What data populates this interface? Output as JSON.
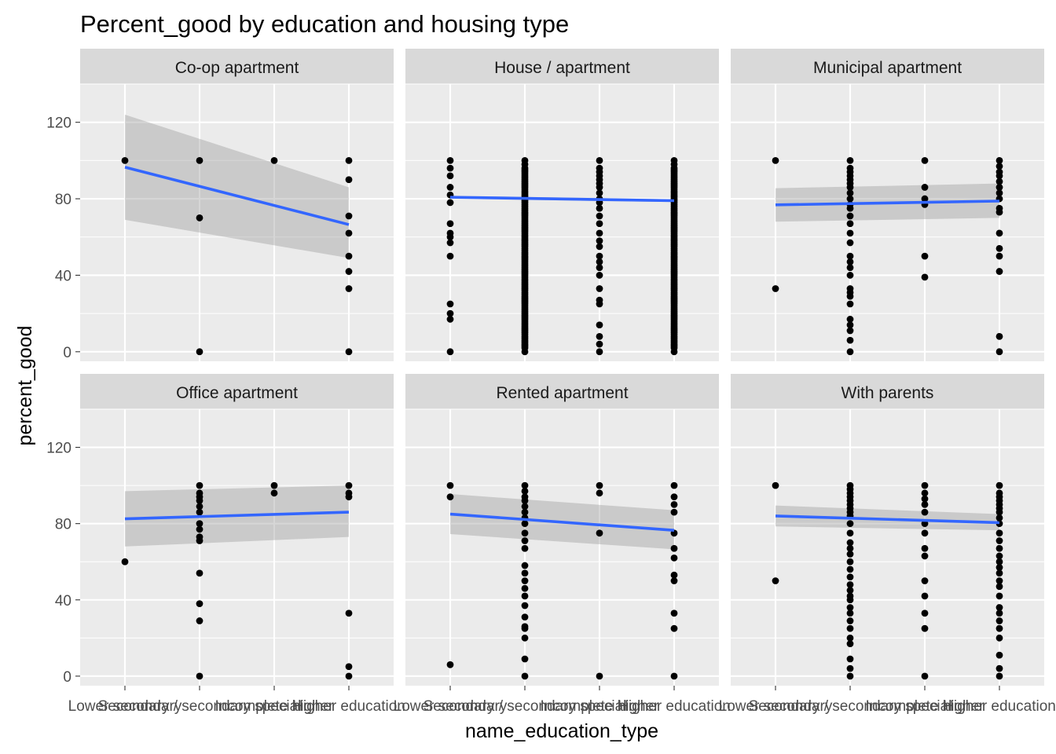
{
  "chart_data": {
    "type": "scatter",
    "title": "Percent_good by education and housing type",
    "xlabel": "name_education_type",
    "ylabel": "percent_good",
    "x_categories": [
      "Lower secondary",
      "Secondary / secondary special",
      "Incomplete higher",
      "Higher education"
    ],
    "ylim": [
      -5,
      140
    ],
    "y_ticks": [
      0,
      40,
      80,
      120
    ],
    "grid": true,
    "facets": [
      {
        "label": "Co-op apartment",
        "points": {
          "Lower secondary": [
            100
          ],
          "Secondary / secondary special": [
            100,
            70,
            0
          ],
          "Incomplete higher": [
            100
          ],
          "Higher education": [
            100,
            90,
            71,
            62,
            50,
            42,
            33,
            0
          ]
        },
        "fit": [
          96.5,
          66.5
        ],
        "ci_lower": [
          69,
          49
        ],
        "ci_upper": [
          124,
          86
        ]
      },
      {
        "label": "House / apartment",
        "points": {
          "Lower secondary": [
            100,
            96,
            92,
            86,
            82,
            78,
            67,
            62,
            60,
            57,
            50,
            25,
            20,
            17,
            0
          ],
          "Secondary / secondary special": [
            100,
            98,
            96,
            95,
            94,
            93,
            92,
            91,
            90,
            89,
            88,
            87,
            86,
            85,
            84,
            83,
            82,
            81,
            80,
            79,
            78,
            77,
            76,
            75,
            74,
            73,
            72,
            71,
            70,
            69,
            68,
            67,
            66,
            65,
            64,
            63,
            62,
            61,
            60,
            59,
            58,
            57,
            56,
            55,
            54,
            53,
            52,
            51,
            50,
            49,
            48,
            47,
            46,
            45,
            44,
            43,
            42,
            41,
            40,
            39,
            38,
            37,
            36,
            35,
            34,
            33,
            32,
            31,
            30,
            29,
            28,
            27,
            26,
            25,
            24,
            23,
            22,
            21,
            20,
            19,
            18,
            17,
            16,
            15,
            14,
            13,
            12,
            11,
            10,
            9,
            8,
            7,
            6,
            5,
            4,
            3,
            2,
            0
          ],
          "Incomplete higher": [
            100,
            96,
            94,
            92,
            90,
            88,
            86,
            83,
            80,
            78,
            75,
            71,
            67,
            62,
            58,
            55,
            50,
            47,
            44,
            40,
            33,
            27,
            25,
            14,
            8,
            4,
            0
          ],
          "Higher education": [
            100,
            98,
            96,
            95,
            94,
            93,
            92,
            91,
            90,
            89,
            88,
            87,
            86,
            85,
            84,
            83,
            82,
            81,
            80,
            79,
            78,
            77,
            76,
            75,
            74,
            73,
            72,
            71,
            70,
            69,
            68,
            67,
            66,
            65,
            64,
            63,
            62,
            61,
            60,
            59,
            58,
            57,
            56,
            55,
            54,
            53,
            52,
            51,
            50,
            49,
            48,
            47,
            46,
            45,
            44,
            43,
            42,
            41,
            40,
            39,
            38,
            37,
            36,
            35,
            34,
            33,
            32,
            31,
            30,
            29,
            28,
            27,
            26,
            25,
            24,
            23,
            22,
            21,
            20,
            19,
            18,
            17,
            16,
            15,
            14,
            13,
            12,
            11,
            10,
            9,
            8,
            7,
            6,
            5,
            4,
            3,
            2,
            0
          ]
        },
        "fit": [
          80.8,
          79.0
        ],
        "ci_lower": [
          80.0,
          78.3
        ],
        "ci_upper": [
          81.6,
          79.7
        ]
      },
      {
        "label": "Municipal apartment",
        "points": {
          "Lower secondary": [
            100,
            33
          ],
          "Secondary / secondary special": [
            100,
            96,
            94,
            92,
            90,
            88,
            86,
            83,
            80,
            77,
            75,
            71,
            67,
            62,
            57,
            50,
            47,
            44,
            40,
            33,
            31,
            29,
            25,
            17,
            14,
            11,
            6,
            0
          ],
          "Incomplete higher": [
            100,
            86,
            80,
            77,
            50,
            39
          ],
          "Higher education": [
            100,
            97,
            94,
            92,
            89,
            86,
            83,
            80,
            75,
            73,
            62,
            54,
            50,
            42,
            8,
            0
          ]
        },
        "fit": [
          76.8,
          78.8
        ],
        "ci_lower": [
          68,
          70
        ],
        "ci_upper": [
          85.5,
          88
        ]
      },
      {
        "label": "Office apartment",
        "points": {
          "Lower secondary": [
            60
          ],
          "Secondary / secondary special": [
            100,
            96,
            94,
            92,
            89,
            86,
            80,
            77,
            73,
            71,
            54,
            38,
            29,
            0
          ],
          "Incomplete higher": [
            100,
            96
          ],
          "Higher education": [
            100,
            96,
            94,
            33,
            5,
            0
          ]
        },
        "fit": [
          82.5,
          86
        ],
        "ci_lower": [
          68,
          73
        ],
        "ci_upper": [
          97,
          100
        ]
      },
      {
        "label": "Rented apartment",
        "points": {
          "Lower secondary": [
            100,
            94,
            6
          ],
          "Secondary / secondary special": [
            100,
            97,
            94,
            92,
            89,
            86,
            83,
            80,
            75,
            71,
            67,
            58,
            54,
            50,
            46,
            42,
            37,
            31,
            26,
            25,
            20,
            9,
            0
          ],
          "Incomplete higher": [
            100,
            96,
            75,
            0
          ],
          "Higher education": [
            100,
            94,
            90,
            86,
            75,
            67,
            62,
            53,
            50,
            33,
            25,
            0
          ]
        },
        "fit": [
          85,
          76.5
        ],
        "ci_lower": [
          74.5,
          66.5
        ],
        "ci_upper": [
          95.5,
          87
        ]
      },
      {
        "label": "With parents",
        "points": {
          "Lower secondary": [
            100,
            50
          ],
          "Secondary / secondary special": [
            100,
            98,
            96,
            94,
            92,
            90,
            88,
            86,
            84,
            80,
            75,
            70,
            67,
            64,
            60,
            56,
            52,
            48,
            45,
            42,
            40,
            36,
            33,
            29,
            25,
            20,
            17,
            9,
            4,
            0
          ],
          "Incomplete higher": [
            100,
            96,
            93,
            90,
            86,
            80,
            75,
            67,
            63,
            50,
            42,
            33,
            25,
            0
          ],
          "Higher education": [
            100,
            96,
            94,
            92,
            90,
            88,
            86,
            83,
            80,
            75,
            71,
            67,
            63,
            60,
            57,
            54,
            50,
            47,
            42,
            36,
            33,
            29,
            25,
            20,
            11,
            4,
            0
          ]
        },
        "fit": [
          84,
          80.5
        ],
        "ci_lower": [
          78.5,
          76.5
        ],
        "ci_upper": [
          89.5,
          85
        ]
      }
    ]
  }
}
